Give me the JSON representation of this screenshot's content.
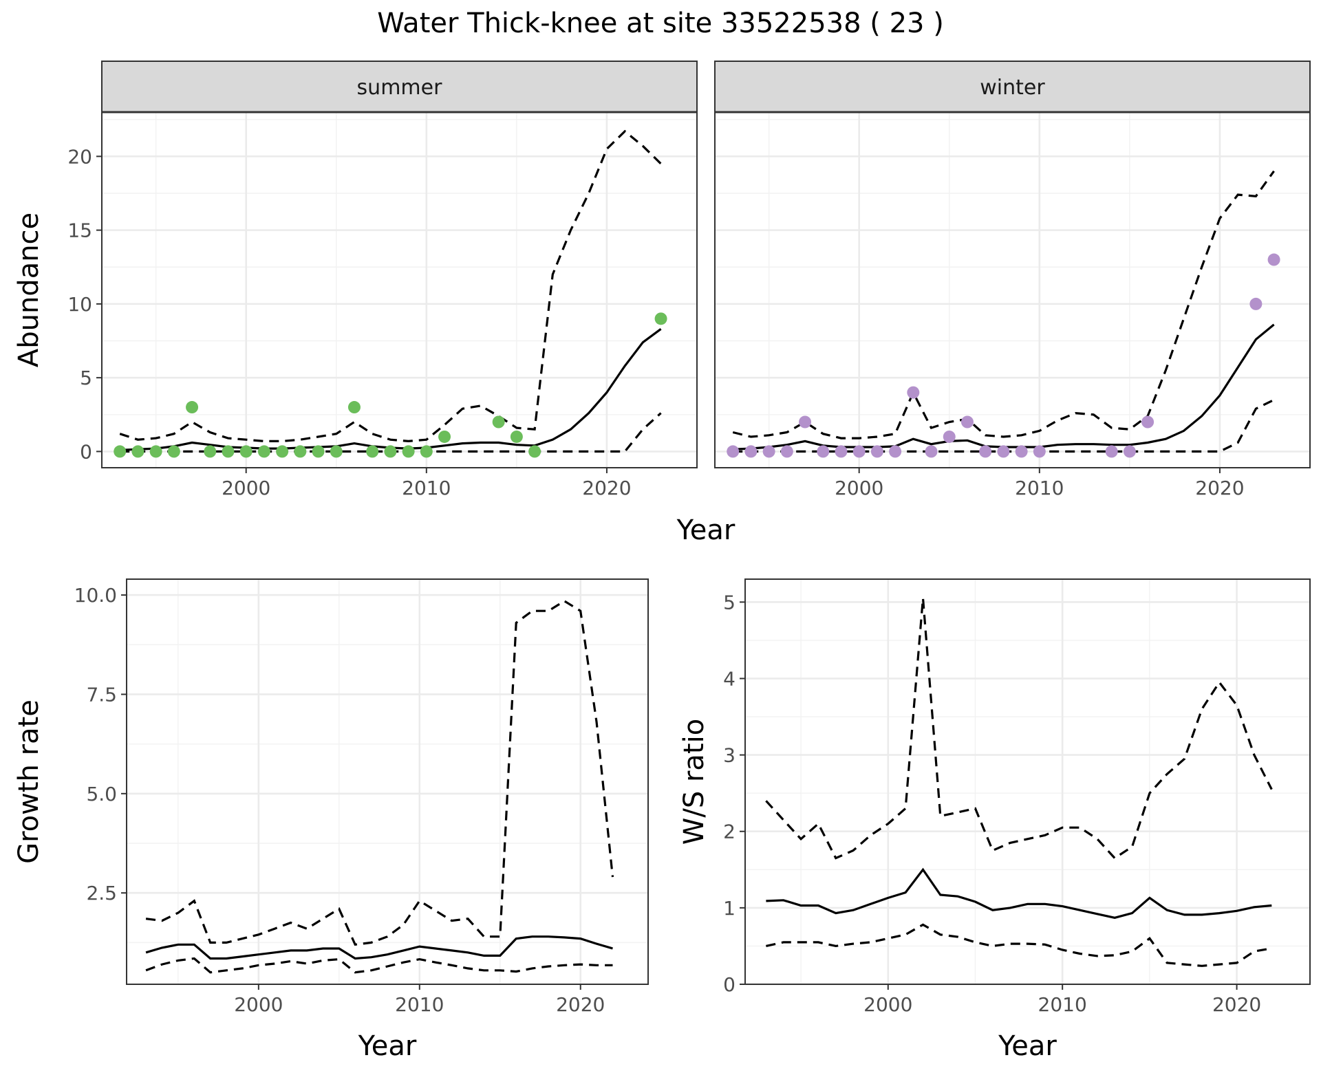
{
  "figure": {
    "title": "Water Thick-knee at site 33522538 ( 23 )"
  },
  "chart_data": [
    {
      "type": "line",
      "facet": "summer",
      "xlabel": "Year",
      "ylabel": "Abundance",
      "xlim": [
        1992,
        2025
      ],
      "ylim": [
        -1.1,
        23
      ],
      "x_ticks": [
        2000,
        2010,
        2020
      ],
      "y_ticks": [
        0,
        5,
        10,
        15,
        20
      ],
      "point_color": "#6bbd5a",
      "observed": {
        "x": [
          1993,
          1994,
          1995,
          1996,
          1997,
          1998,
          1999,
          2000,
          2001,
          2002,
          2003,
          2004,
          2005,
          2007,
          2008,
          2009,
          2010,
          2011,
          2014,
          2015,
          2016,
          2006,
          2023
        ],
        "y": [
          0,
          0,
          0,
          0,
          3,
          0,
          0,
          0,
          0,
          0,
          0,
          0,
          0,
          0,
          0,
          0,
          0,
          1,
          2,
          1,
          0,
          3,
          9
        ]
      },
      "fitted": {
        "x": [
          1993,
          1994,
          1995,
          1996,
          1997,
          1998,
          1999,
          2000,
          2001,
          2002,
          2003,
          2004,
          2005,
          2006,
          2007,
          2008,
          2009,
          2010,
          2011,
          2012,
          2013,
          2014,
          2015,
          2016,
          2017,
          2018,
          2019,
          2020,
          2021,
          2022,
          2023
        ],
        "y": [
          0.1,
          0.15,
          0.2,
          0.35,
          0.6,
          0.45,
          0.3,
          0.25,
          0.2,
          0.2,
          0.25,
          0.3,
          0.35,
          0.55,
          0.35,
          0.25,
          0.2,
          0.25,
          0.4,
          0.55,
          0.6,
          0.6,
          0.45,
          0.4,
          0.8,
          1.5,
          2.6,
          4.0,
          5.8,
          7.4,
          8.3
        ]
      },
      "upper": {
        "x": [
          1993,
          1994,
          1995,
          1996,
          1997,
          1998,
          1999,
          2000,
          2001,
          2002,
          2003,
          2004,
          2005,
          2006,
          2007,
          2008,
          2009,
          2010,
          2011,
          2012,
          2013,
          2014,
          2015,
          2016,
          2017,
          2018,
          2019,
          2020,
          2021,
          2022,
          2023
        ],
        "y": [
          1.2,
          0.8,
          0.9,
          1.2,
          2.0,
          1.3,
          0.9,
          0.8,
          0.7,
          0.7,
          0.8,
          1.0,
          1.2,
          2.0,
          1.2,
          0.8,
          0.7,
          0.8,
          1.8,
          2.9,
          3.1,
          2.4,
          1.6,
          1.5,
          12.0,
          15.0,
          17.5,
          20.5,
          21.7,
          20.7,
          19.5
        ]
      },
      "lower": {
        "x": [
          1993,
          1994,
          1995,
          1996,
          1997,
          1998,
          1999,
          2000,
          2001,
          2002,
          2003,
          2004,
          2005,
          2006,
          2007,
          2008,
          2009,
          2010,
          2011,
          2012,
          2013,
          2014,
          2015,
          2016,
          2017,
          2018,
          2019,
          2020,
          2021,
          2022,
          2023
        ],
        "y": [
          0,
          0,
          0,
          0,
          0,
          0,
          0,
          0,
          0,
          0,
          0,
          0,
          0,
          0,
          0,
          0,
          0,
          0,
          0,
          0,
          0,
          0,
          0,
          0,
          0,
          0,
          0,
          0,
          0,
          1.5,
          2.6
        ]
      }
    },
    {
      "type": "line",
      "facet": "winter",
      "xlabel": "Year",
      "ylabel": "Abundance",
      "xlim": [
        1992,
        2025
      ],
      "ylim": [
        -1.1,
        23
      ],
      "x_ticks": [
        2000,
        2010,
        2020
      ],
      "y_ticks": [
        0,
        5,
        10,
        15,
        20
      ],
      "point_color": "#b391cb",
      "observed": {
        "x": [
          1993,
          1994,
          1995,
          1996,
          1997,
          1998,
          1999,
          2000,
          2001,
          2002,
          2003,
          2004,
          2005,
          2006,
          2007,
          2008,
          2009,
          2010,
          2014,
          2015,
          2016,
          2022,
          2023
        ],
        "y": [
          0,
          0,
          0,
          0,
          2,
          0,
          0,
          0,
          0,
          0,
          4,
          0,
          1,
          2,
          0,
          0,
          0,
          0,
          0,
          0,
          2,
          10,
          13
        ]
      },
      "fitted": {
        "x": [
          1993,
          1994,
          1995,
          1996,
          1997,
          1998,
          1999,
          2000,
          2001,
          2002,
          2003,
          2004,
          2005,
          2006,
          2007,
          2008,
          2009,
          2010,
          2011,
          2012,
          2013,
          2014,
          2015,
          2016,
          2017,
          2018,
          2019,
          2020,
          2021,
          2022,
          2023
        ],
        "y": [
          0.15,
          0.2,
          0.3,
          0.45,
          0.7,
          0.4,
          0.3,
          0.3,
          0.3,
          0.35,
          0.85,
          0.5,
          0.7,
          0.75,
          0.35,
          0.3,
          0.3,
          0.3,
          0.45,
          0.5,
          0.5,
          0.45,
          0.45,
          0.6,
          0.85,
          1.4,
          2.4,
          3.8,
          5.7,
          7.6,
          8.6
        ]
      },
      "upper": {
        "x": [
          1993,
          1994,
          1995,
          1996,
          1997,
          1998,
          1999,
          2000,
          2001,
          2002,
          2003,
          2004,
          2005,
          2006,
          2007,
          2008,
          2009,
          2010,
          2011,
          2012,
          2013,
          2014,
          2015,
          2016,
          2017,
          2018,
          2019,
          2020,
          2021,
          2022,
          2023
        ],
        "y": [
          1.3,
          1.0,
          1.1,
          1.3,
          2.0,
          1.2,
          0.9,
          0.9,
          1.0,
          1.2,
          4.0,
          1.6,
          2.0,
          2.2,
          1.1,
          1.0,
          1.1,
          1.4,
          2.1,
          2.6,
          2.5,
          1.6,
          1.5,
          2.4,
          5.5,
          9.0,
          12.5,
          15.8,
          17.4,
          17.3,
          19.0
        ]
      },
      "lower": {
        "x": [
          1993,
          1994,
          1995,
          1996,
          1997,
          1998,
          1999,
          2000,
          2001,
          2002,
          2003,
          2004,
          2005,
          2006,
          2007,
          2008,
          2009,
          2010,
          2011,
          2012,
          2013,
          2014,
          2015,
          2016,
          2017,
          2018,
          2019,
          2020,
          2021,
          2022,
          2023
        ],
        "y": [
          0,
          0,
          0,
          0,
          0,
          0,
          0,
          0,
          0,
          0,
          0,
          0,
          0,
          0,
          0,
          0,
          0,
          0,
          0,
          0,
          0,
          0,
          0,
          0,
          0,
          0,
          0,
          0,
          0.6,
          2.9,
          3.5
        ]
      }
    },
    {
      "type": "line",
      "xlabel": "Year",
      "ylabel": "Growth rate",
      "xlim": [
        1991.8,
        2024.2
      ],
      "ylim": [
        0.2,
        10.4
      ],
      "x_ticks": [
        2000,
        2010,
        2020
      ],
      "y_ticks": [
        2.5,
        5.0,
        7.5,
        10.0
      ],
      "y_tick_labels": [
        "2.5",
        "5.0",
        "7.5",
        "10.0"
      ],
      "fitted": {
        "x": [
          1993,
          1994,
          1995,
          1996,
          1997,
          1998,
          1999,
          2000,
          2001,
          2002,
          2003,
          2004,
          2005,
          2006,
          2007,
          2008,
          2009,
          2010,
          2011,
          2012,
          2013,
          2014,
          2015,
          2016,
          2017,
          2018,
          2019,
          2020,
          2021,
          2022
        ],
        "y": [
          1.0,
          1.12,
          1.2,
          1.2,
          0.85,
          0.85,
          0.9,
          0.95,
          1.0,
          1.05,
          1.05,
          1.1,
          1.1,
          0.85,
          0.88,
          0.95,
          1.05,
          1.15,
          1.1,
          1.05,
          1.0,
          0.92,
          0.92,
          1.35,
          1.4,
          1.4,
          1.38,
          1.35,
          1.22,
          1.1
        ]
      },
      "upper": {
        "x": [
          1993,
          1994,
          1995,
          1996,
          1997,
          1998,
          1999,
          2000,
          2001,
          2002,
          2003,
          2004,
          2005,
          2006,
          2007,
          2008,
          2009,
          2010,
          2011,
          2012,
          2013,
          2014,
          2015,
          2016,
          2017,
          2018,
          2019,
          2020,
          2021,
          2022
        ],
        "y": [
          1.85,
          1.8,
          2.0,
          2.3,
          1.25,
          1.25,
          1.35,
          1.45,
          1.6,
          1.75,
          1.6,
          1.85,
          2.1,
          1.2,
          1.25,
          1.4,
          1.7,
          2.3,
          2.05,
          1.8,
          1.85,
          1.4,
          1.4,
          9.3,
          9.6,
          9.6,
          9.85,
          9.6,
          6.8,
          2.9
        ]
      },
      "lower": {
        "x": [
          1993,
          1994,
          1995,
          1996,
          1997,
          1998,
          1999,
          2000,
          2001,
          2002,
          2003,
          2004,
          2005,
          2006,
          2007,
          2008,
          2009,
          2010,
          2011,
          2012,
          2013,
          2014,
          2015,
          2016,
          2017,
          2018,
          2019,
          2020,
          2021,
          2022
        ],
        "y": [
          0.55,
          0.7,
          0.8,
          0.85,
          0.5,
          0.55,
          0.6,
          0.68,
          0.72,
          0.78,
          0.72,
          0.8,
          0.83,
          0.5,
          0.55,
          0.65,
          0.75,
          0.83,
          0.75,
          0.68,
          0.6,
          0.55,
          0.55,
          0.52,
          0.6,
          0.65,
          0.68,
          0.7,
          0.68,
          0.68
        ]
      }
    },
    {
      "type": "line",
      "xlabel": "Year",
      "ylabel": "W/S ratio",
      "xlim": [
        1991.8,
        2024.2
      ],
      "ylim": [
        0,
        5.3
      ],
      "x_ticks": [
        2000,
        2010,
        2020
      ],
      "y_ticks": [
        0,
        1,
        2,
        3,
        4,
        5
      ],
      "fitted": {
        "x": [
          1993,
          1994,
          1995,
          1996,
          1997,
          1998,
          1999,
          2000,
          2001,
          2002,
          2003,
          2004,
          2005,
          2006,
          2007,
          2008,
          2009,
          2010,
          2011,
          2012,
          2013,
          2014,
          2015,
          2016,
          2017,
          2018,
          2019,
          2020,
          2021,
          2022
        ],
        "y": [
          1.09,
          1.1,
          1.03,
          1.03,
          0.93,
          0.97,
          1.05,
          1.13,
          1.2,
          1.5,
          1.17,
          1.15,
          1.08,
          0.97,
          1.0,
          1.05,
          1.05,
          1.02,
          0.97,
          0.92,
          0.87,
          0.93,
          1.13,
          0.97,
          0.91,
          0.91,
          0.93,
          0.96,
          1.01,
          1.03
        ]
      },
      "upper": {
        "x": [
          1993,
          1994,
          1995,
          1996,
          1997,
          1998,
          1999,
          2000,
          2001,
          2002,
          2003,
          2004,
          2005,
          2006,
          2007,
          2008,
          2009,
          2010,
          2011,
          2012,
          2013,
          2014,
          2015,
          2016,
          2017,
          2018,
          2019,
          2020,
          2021,
          2022
        ],
        "y": [
          2.4,
          2.15,
          1.9,
          2.1,
          1.65,
          1.75,
          1.95,
          2.1,
          2.3,
          5.05,
          2.2,
          2.25,
          2.3,
          1.75,
          1.85,
          1.9,
          1.95,
          2.05,
          2.05,
          1.9,
          1.65,
          1.8,
          2.5,
          2.75,
          2.95,
          3.6,
          3.95,
          3.65,
          3.0,
          2.55
        ]
      },
      "lower": {
        "x": [
          1993,
          1994,
          1995,
          1996,
          1997,
          1998,
          1999,
          2000,
          2001,
          2002,
          2003,
          2004,
          2005,
          2006,
          2007,
          2008,
          2009,
          2010,
          2011,
          2012,
          2013,
          2014,
          2015,
          2016,
          2017,
          2018,
          2019,
          2020,
          2021,
          2022
        ],
        "y": [
          0.5,
          0.55,
          0.55,
          0.55,
          0.5,
          0.53,
          0.55,
          0.6,
          0.65,
          0.78,
          0.65,
          0.62,
          0.55,
          0.5,
          0.53,
          0.53,
          0.52,
          0.45,
          0.4,
          0.37,
          0.38,
          0.43,
          0.6,
          0.28,
          0.26,
          0.24,
          0.26,
          0.28,
          0.43,
          0.47
        ]
      }
    }
  ]
}
